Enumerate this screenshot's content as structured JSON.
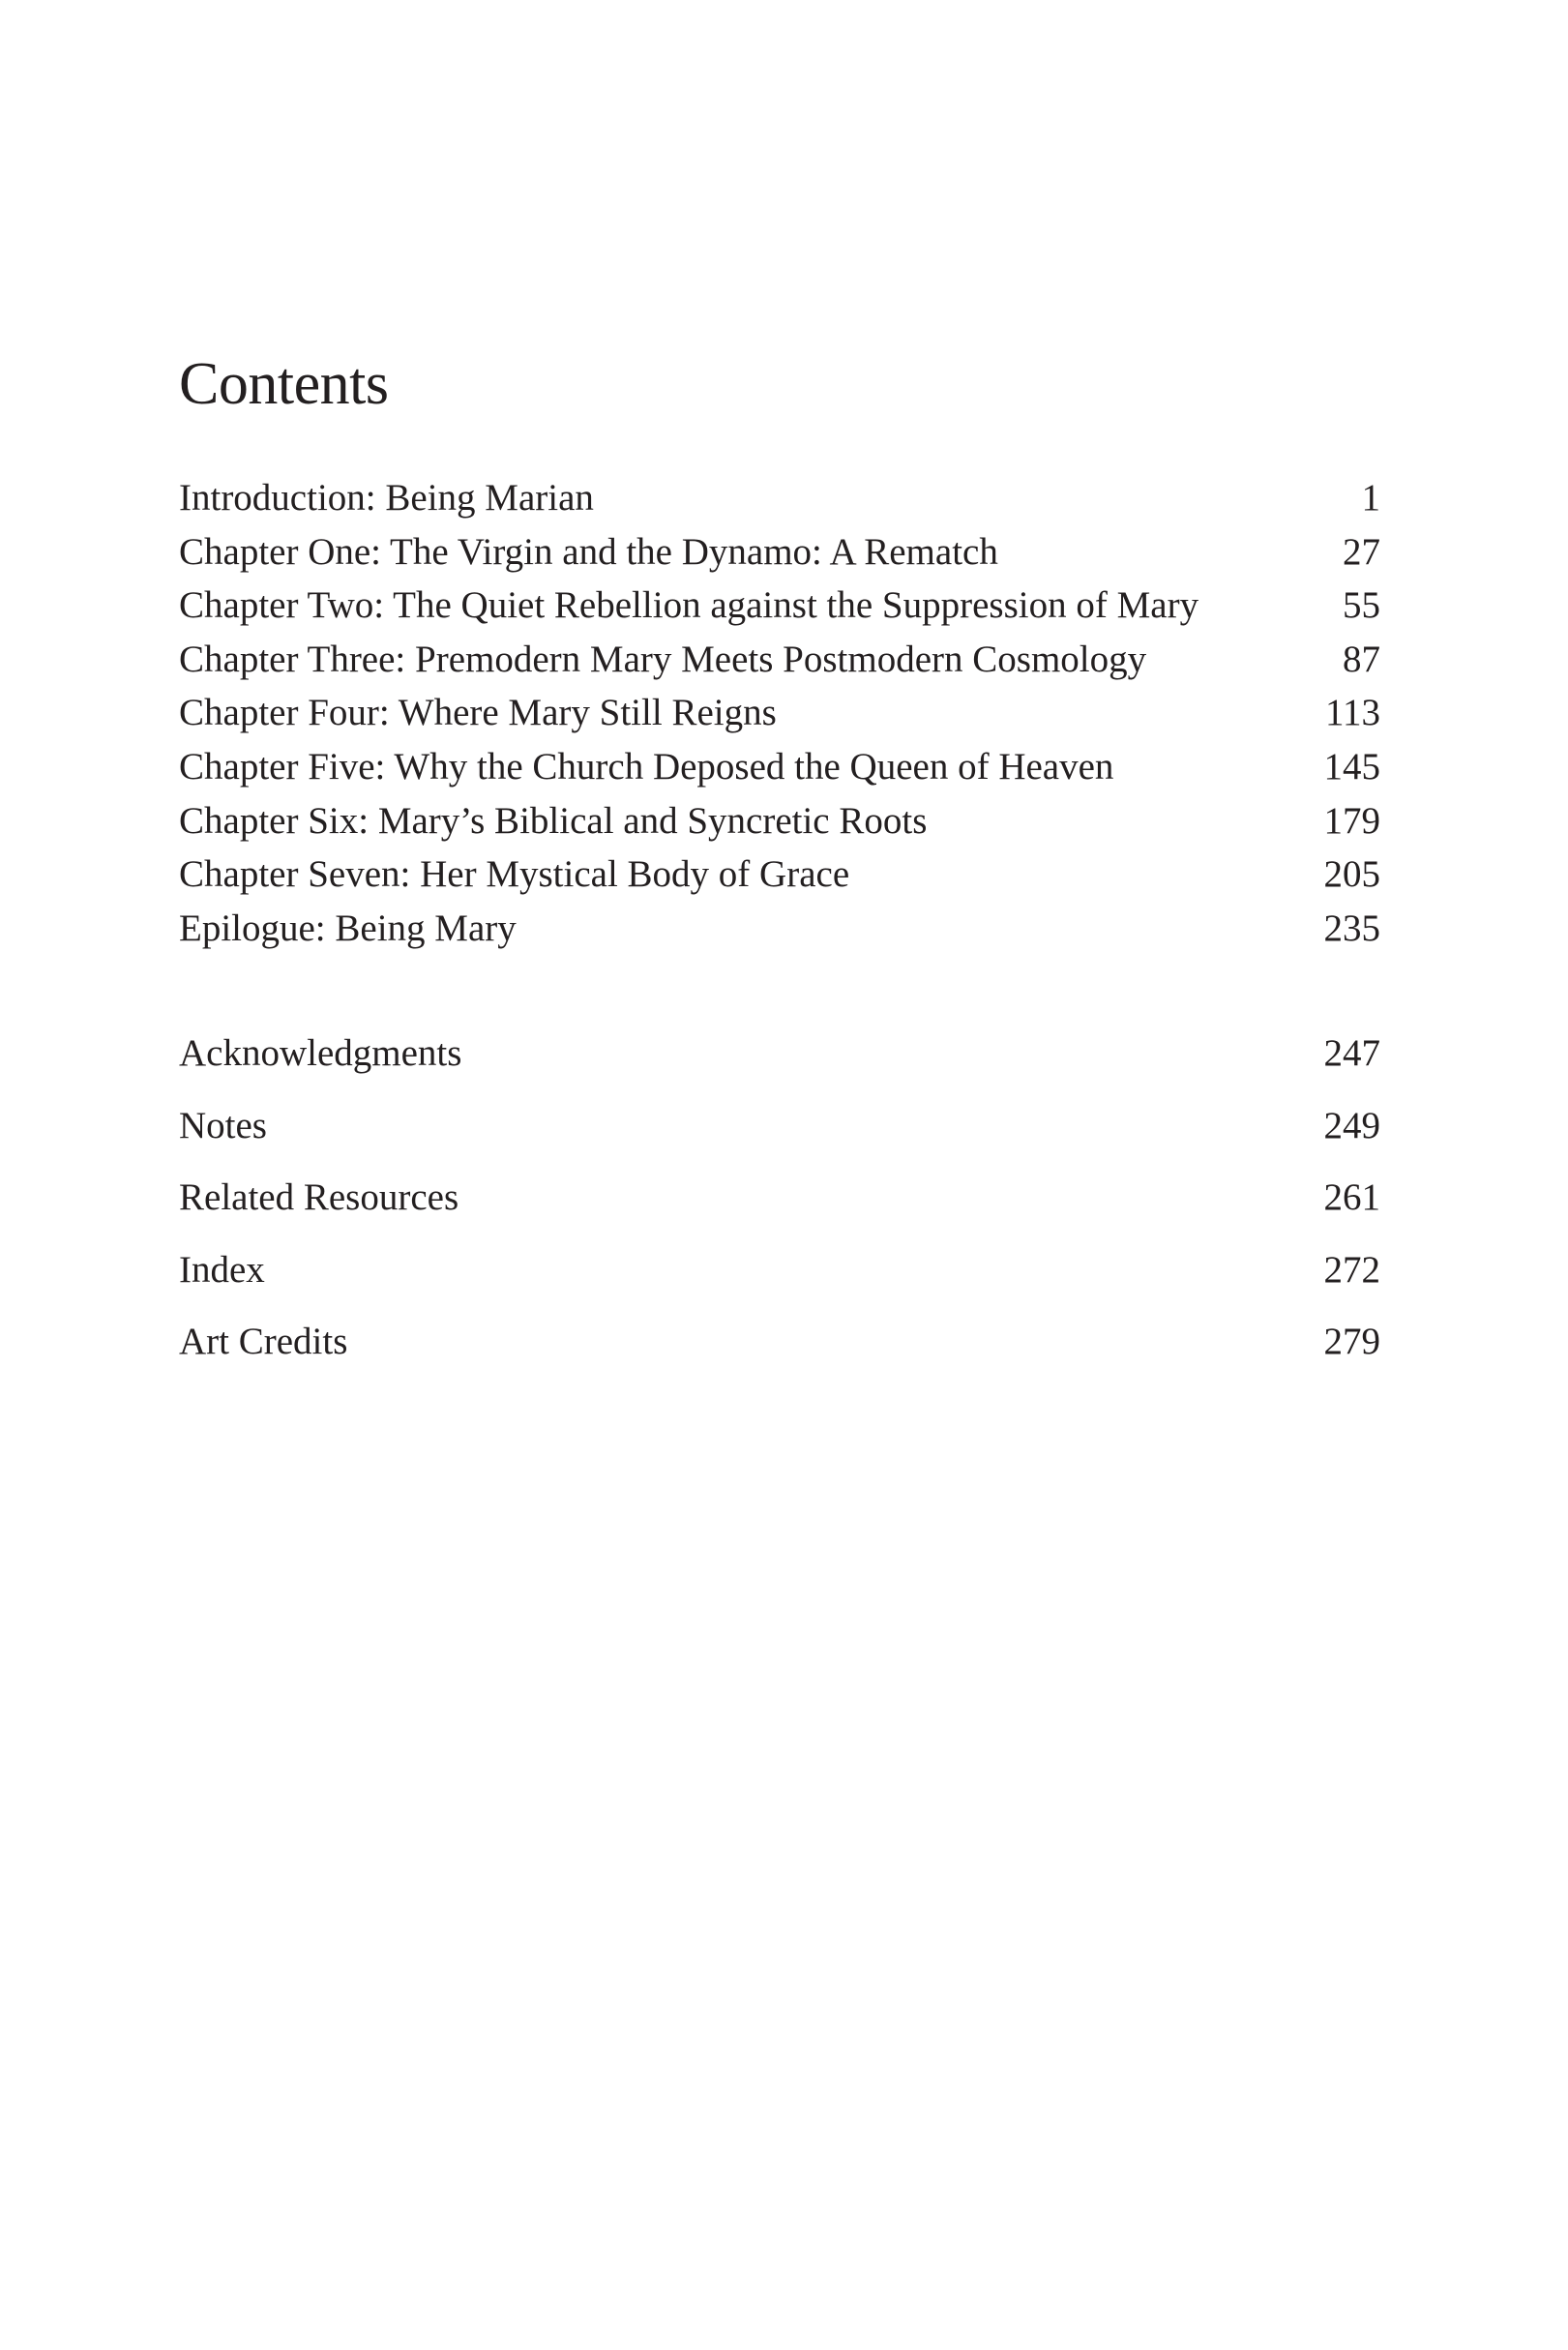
{
  "title": "Contents",
  "chapters": [
    {
      "label": "Introduction: Being Marian",
      "page": "1"
    },
    {
      "label": "Chapter One: The Virgin and the Dynamo: A Rematch",
      "page": "27"
    },
    {
      "label": "Chapter Two: The Quiet Rebellion against the Suppression of Mary",
      "page": "55"
    },
    {
      "label": "Chapter Three: Premodern Mary Meets Postmodern Cosmology",
      "page": "87"
    },
    {
      "label": "Chapter Four: Where Mary Still Reigns",
      "page": "113"
    },
    {
      "label": "Chapter Five: Why the Church Deposed the Queen of Heaven",
      "page": "145"
    },
    {
      "label": "Chapter Six: Mary’s Biblical and Syncretic Roots",
      "page": "179"
    },
    {
      "label": "Chapter Seven: Her Mystical Body of Grace",
      "page": "205"
    },
    {
      "label": "Epilogue: Being Mary",
      "page": "235"
    }
  ],
  "back_matter": [
    {
      "label": "Acknowledgments",
      "page": "247"
    },
    {
      "label": "Notes",
      "page": "249"
    },
    {
      "label": "Related Resources",
      "page": "261"
    },
    {
      "label": "Index",
      "page": "272"
    },
    {
      "label": "Art Credits",
      "page": "279"
    }
  ]
}
